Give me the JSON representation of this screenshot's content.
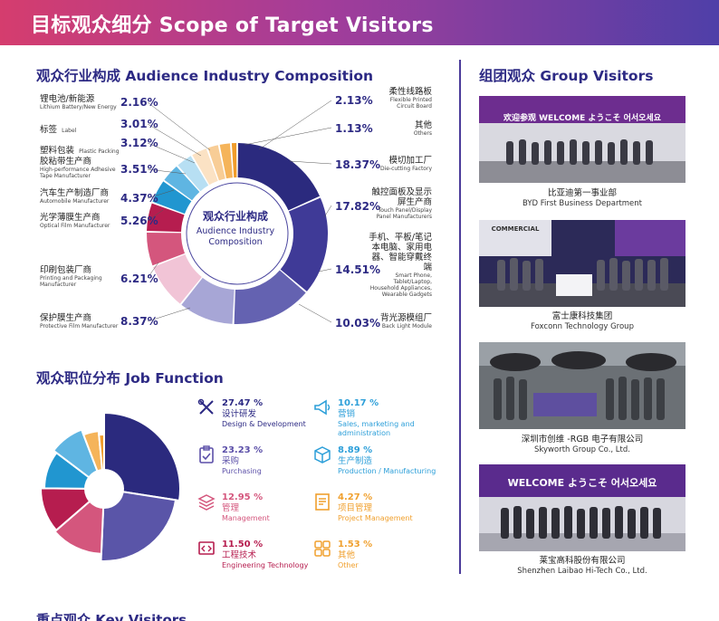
{
  "header": {
    "title": "目标观众细分 Scope of Target Visitors"
  },
  "industry": {
    "title": "观众行业构成 Audience Industry Composition",
    "center_zh": "观众行业构成",
    "center_en": "Audience Industry Composition",
    "left": [
      {
        "zh": "锂电池/新能源",
        "en": "Lithium Battery/New Energy",
        "pct": "2.16%"
      },
      {
        "zh": "标签",
        "en": "Label",
        "pct": "3.01%"
      },
      {
        "zh": "塑料包装",
        "en": "Plastic Packing",
        "pct": "3.12%"
      },
      {
        "zh": "胶粘带生产商",
        "en": "High-performance Adhesive Tape Manufacturer",
        "pct": "3.51%"
      },
      {
        "zh": "汽车生产制造厂商",
        "en": "Automobile Manufacturer",
        "pct": "4.37%"
      },
      {
        "zh": "光学薄膜生产商",
        "en": "Optical Film Manufacturer",
        "pct": "5.26%"
      },
      {
        "zh": "印刷包装厂商",
        "en": "Printing and Packaging Manufacturer",
        "pct": "6.21%"
      },
      {
        "zh": "保护膜生产商",
        "en": "Protective Film Manufacturer",
        "pct": "8.37%"
      }
    ],
    "right": [
      {
        "zh": "柔性线路板",
        "en": "Flexible Printed Circuit Board",
        "pct": "2.13%"
      },
      {
        "zh": "其他",
        "en": "Others",
        "pct": "1.13%"
      },
      {
        "zh": "模切加工厂",
        "en": "Die-cutting Factory",
        "pct": "18.37%"
      },
      {
        "zh": "触控面板及显示屏生产商",
        "en": "Touch Panel/Display Panel Manufacturers",
        "pct": "17.82%"
      },
      {
        "zh": "手机、平板/笔记本电脑、家用电器、智能穿戴终端",
        "en": "Smart Phone, Tablet/Laptop, Household Appliances, Wearable Gadgets",
        "pct": "14.51%"
      },
      {
        "zh": "背光源模组厂",
        "en": "Back Light Module",
        "pct": "10.03%"
      }
    ]
  },
  "chart_data": [
    {
      "type": "pie",
      "title": "观众行业构成 Audience Industry Composition",
      "categories": [
        "模切加工厂",
        "触控面板及显示屏生产商",
        "手机、平板/笔记本电脑、家用电器、智能穿戴终端",
        "背光源模组厂",
        "保护膜生产商",
        "印刷包装厂商",
        "光学薄膜生产商",
        "汽车生产制造厂商",
        "胶粘带生产商",
        "塑料包装",
        "标签",
        "锂电池/新能源",
        "柔性线路板",
        "其他"
      ],
      "values": [
        18.37,
        17.82,
        14.51,
        10.03,
        8.37,
        6.21,
        5.26,
        4.37,
        3.51,
        3.12,
        3.01,
        2.16,
        2.13,
        1.13
      ],
      "colors": [
        "#2b2a7e",
        "#3f3a97",
        "#6462b1",
        "#a7a6d6",
        "#f1c4d6",
        "#d4567d",
        "#b61d4f",
        "#2196d0",
        "#5fb5e2",
        "#b7dff3",
        "#fbe2c4",
        "#f8cd96",
        "#f5b45a",
        "#f09c2b"
      ]
    },
    {
      "type": "pie",
      "title": "观众职位分布 Job Function",
      "categories": [
        "设计研发",
        "采购",
        "管理",
        "工程技术",
        "营销",
        "生产制造",
        "项目管理",
        "其他"
      ],
      "values": [
        27.47,
        23.23,
        12.95,
        11.5,
        10.17,
        8.89,
        4.27,
        1.53
      ],
      "colors": [
        "#2b2a7e",
        "#5a55a8",
        "#d4567d",
        "#b61d4f",
        "#2196d0",
        "#5fb5e2",
        "#f5b45a",
        "#f09c2b"
      ]
    }
  ],
  "job": {
    "title": "观众职位分布 Job Function",
    "items": [
      {
        "pct": "27.47 %",
        "zh": "设计研发",
        "en": "Design & Development",
        "color": "#2d2a84",
        "icon": "tools-icon"
      },
      {
        "pct": "10.17 %",
        "zh": "营销",
        "en": "Sales, marketing and administration",
        "color": "#2d9fd9",
        "icon": "megaphone-icon"
      },
      {
        "pct": "23.23 %",
        "zh": "采购",
        "en": "Purchasing",
        "color": "#5b4fa8",
        "icon": "clipboard-icon"
      },
      {
        "pct": "8.89 %",
        "zh": "生产制造",
        "en": "Production / Manufacturing",
        "color": "#2d9fd9",
        "icon": "box-icon"
      },
      {
        "pct": "12.95 %",
        "zh": "管理",
        "en": "Management",
        "color": "#d4567d",
        "icon": "layers-icon"
      },
      {
        "pct": "4.27 %",
        "zh": "项目管理",
        "en": "Project Management",
        "color": "#f0a02e",
        "icon": "document-icon"
      },
      {
        "pct": "11.50 %",
        "zh": "工程技术",
        "en": "Engineering Technology",
        "color": "#b61d4f",
        "icon": "code-icon"
      },
      {
        "pct": "1.53 %",
        "zh": "其他",
        "en": "Other",
        "color": "#f0a02e",
        "icon": "grid-icon"
      }
    ]
  },
  "groups": {
    "title": "组团观众 Group Visitors",
    "items": [
      {
        "zh": "比亚迪第一事业部",
        "en": "BYD First Business Department",
        "banner": "欢迎参观 WELCOME ようこそ 어서오세요"
      },
      {
        "zh": "富士康科技集团",
        "en": "Foxconn Technology Group",
        "banner": "COMMERCIAL"
      },
      {
        "zh": "深圳市创维 -RGB 电子有限公司",
        "en": "Skyworth Group Co., Ltd.",
        "banner": ""
      },
      {
        "zh": "莱宝高科股份有限公司",
        "en": "Shenzhen Laibao Hi-Tech Co., Ltd.",
        "banner": "WELCOME ようこそ 어서오세요"
      }
    ]
  },
  "key_visitors": {
    "title": "重点观众 Key Visitors"
  }
}
